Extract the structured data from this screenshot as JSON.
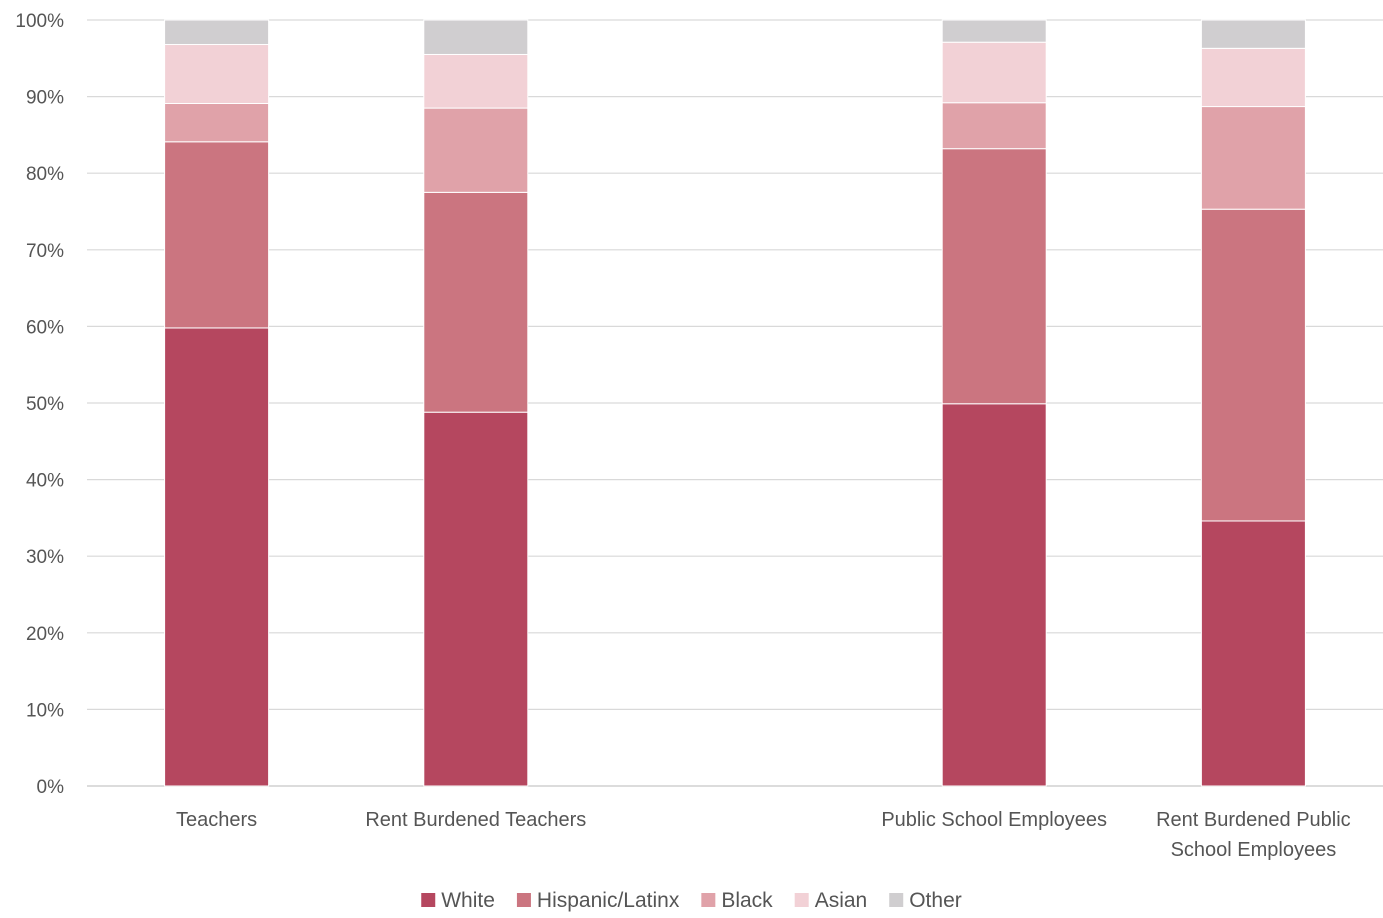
{
  "chart_data": {
    "type": "bar",
    "stacked": true,
    "percent_stacked": true,
    "categories": [
      [
        "Teachers"
      ],
      [
        "Rent Burdened Teachers"
      ],
      [
        ""
      ],
      [
        "Public School Employees"
      ],
      [
        "Rent Burdened Public",
        "School Employees"
      ]
    ],
    "series": [
      {
        "name": "White",
        "color": "#b5475f",
        "values": [
          59.8,
          48.8,
          null,
          49.9,
          34.6
        ]
      },
      {
        "name": "Hispanic/Latinx",
        "color": "#cb7580",
        "values": [
          24.3,
          28.7,
          null,
          33.3,
          40.7
        ]
      },
      {
        "name": "Black",
        "color": "#e0a2a9",
        "values": [
          5.0,
          11.0,
          null,
          6.0,
          13.4
        ]
      },
      {
        "name": "Asian",
        "color": "#f2d1d6",
        "values": [
          7.7,
          7.0,
          null,
          7.9,
          7.6
        ]
      },
      {
        "name": "Other",
        "color": "#d0ced0",
        "values": [
          3.2,
          4.5,
          null,
          2.9,
          3.7
        ]
      }
    ],
    "ylim": [
      0,
      100
    ],
    "yticks": [
      "0%",
      "10%",
      "20%",
      "30%",
      "40%",
      "50%",
      "60%",
      "70%",
      "80%",
      "90%",
      "100%"
    ],
    "grid": true,
    "legend_position": "bottom",
    "title": "",
    "xlabel": "",
    "ylabel": ""
  }
}
